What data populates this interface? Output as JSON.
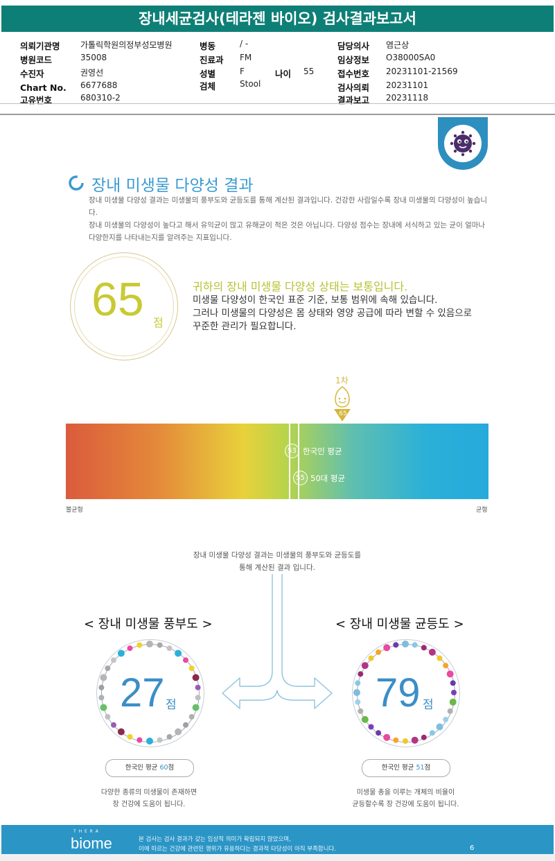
{
  "report": {
    "title": "장내세균검사(테라젠 바이오) 검사결과보고서",
    "left_fields": [
      {
        "label": "의뢰기관명",
        "value": "가톨릭학원의정부성모병원"
      },
      {
        "label": "병원코드",
        "value": "35008"
      },
      {
        "label": "수진자",
        "value": "권영선"
      },
      {
        "label": "Chart No.",
        "value": "6677688"
      },
      {
        "label": "고유번호",
        "value": "680310-2"
      }
    ],
    "mid_fields": [
      {
        "label": "병동",
        "value": "/ -"
      },
      {
        "label": "진료과",
        "value": "FM"
      },
      {
        "label": "성별",
        "value": "F"
      },
      {
        "label": "검체",
        "value": "Stool"
      }
    ],
    "age": {
      "label": "나이",
      "value": "55"
    },
    "right_fields": [
      {
        "label": "담당의사",
        "value": "염근상"
      },
      {
        "label": "임상정보",
        "value": "O38000SA0"
      },
      {
        "label": "접수번호",
        "value": "20231101-21569"
      },
      {
        "label": "검사의뢰",
        "value": "20231101"
      },
      {
        "label": "결과보고",
        "value": "20231118"
      }
    ]
  },
  "diversity": {
    "section_title": "장내 미생물 다양성 결과",
    "desc": [
      "장내 미생물 다양성 결과는 미생물의 풍부도와 균등도를 통해 계산된 결과입니다. 건강한 사람일수록 장내 미생물의 다양성이 높습니다.",
      "장내 미생물의 다양성이 높다고 해서 유익균이 많고 유해균이 적은 것은 아닙니다. 다양성 점수는 장내에 서식하고 있는 균이 얼마나 다양한지를 나타내는지를 알려주는 지표입니다."
    ],
    "score": "65",
    "score_unit": "점",
    "status_title": "귀하의 장내 미생물 다양성 상태는 보통입니다.",
    "status_lines": [
      "미생물 다양성이 한국인 표준 기준, 보통 범위에 속해 있습니다.",
      "그러나 미생물의 다양성은 몸 상태와 영양 공급에 따라 변할 수 있음으로",
      "꾸준한 관리가 필요합니다."
    ]
  },
  "scale": {
    "round_label": "1차",
    "user_value": 65,
    "user_value_text": "65",
    "korean_avg_value": 53,
    "korean_avg_text": "53",
    "korean_avg_label": "한국인 평균",
    "age_avg_value": 55,
    "age_avg_text": "55",
    "age_avg_label": "50대 평균",
    "left_label": "불균형",
    "right_label": "균형",
    "colors": {
      "left": "#db5b3c",
      "mid": "#e8d13b",
      "right": "#25aadb"
    }
  },
  "components": {
    "intro_lines": [
      "장내 미생물 다양성 결과는 미생물의 풍부도와 균등도를",
      "통해 계산된 결과 입니다."
    ],
    "richness": {
      "heading": "< 장내 미생물 풍부도 >",
      "score": "27",
      "unit": "점",
      "avg_prefix": "한국인 평균 ",
      "avg_value": "60",
      "avg_suffix": "점",
      "note": [
        "다양한 종류의 미생물이 존재하면",
        "장 건강에 도움이 됩니다."
      ]
    },
    "evenness": {
      "heading": "< 장내 미생물 균등도 >",
      "score": "79",
      "unit": "점",
      "avg_prefix": "한국인 평균 ",
      "avg_value": "51",
      "avg_suffix": "점",
      "note": [
        "미생물 총을 이루는 개체의 비율이",
        "균등할수록 장 건강에 도움이 됩니다."
      ]
    }
  },
  "footer": {
    "brand_small": "T H E R A",
    "brand": "biome",
    "disclaimer": [
      "본 검사는 검사 결과가 갖는 임상적 의미가 확립되지 않았으며,",
      "이에 따르는 건강에 관련된 행위가 유용하다는 결과적 타당성이 아직 부족합니다."
    ],
    "page": "6"
  }
}
